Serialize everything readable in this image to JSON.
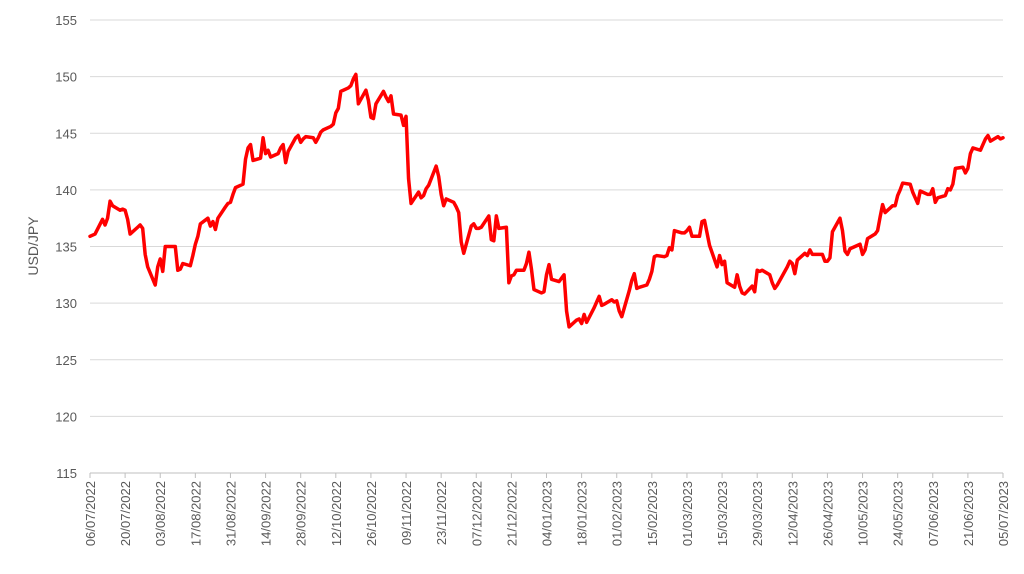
{
  "chart_data": {
    "type": "line",
    "ylabel": "USD/JPY",
    "xlabel": "",
    "ylim": [
      115,
      155
    ],
    "y_ticks": [
      115,
      120,
      125,
      130,
      135,
      140,
      145,
      150,
      155
    ],
    "y_tick_labels": [
      "115",
      "120",
      "125",
      "130",
      "135",
      "140",
      "145",
      "150",
      "155"
    ],
    "x_range": [
      "2022-07-06",
      "2023-07-05"
    ],
    "x_ticks": [
      "2022-07-06",
      "2022-07-20",
      "2022-08-03",
      "2022-08-17",
      "2022-08-31",
      "2022-09-14",
      "2022-09-28",
      "2022-10-12",
      "2022-10-26",
      "2022-11-09",
      "2022-11-23",
      "2022-12-07",
      "2022-12-21",
      "2023-01-04",
      "2023-01-18",
      "2023-02-01",
      "2023-02-15",
      "2023-03-01",
      "2023-03-15",
      "2023-03-29",
      "2023-04-12",
      "2023-04-26",
      "2023-05-10",
      "2023-05-24",
      "2023-06-07",
      "2023-06-21",
      "2023-07-05"
    ],
    "x_tick_labels": [
      "06/07/2022",
      "20/07/2022",
      "03/08/2022",
      "17/08/2022",
      "31/08/2022",
      "14/09/2022",
      "28/09/2022",
      "12/10/2022",
      "26/10/2022",
      "09/11/2022",
      "23/11/2022",
      "07/12/2022",
      "21/12/2022",
      "04/01/2023",
      "18/01/2023",
      "01/02/2023",
      "15/02/2023",
      "01/03/2023",
      "15/03/2023",
      "29/03/2023",
      "12/04/2023",
      "26/04/2023",
      "10/05/2023",
      "24/05/2023",
      "07/06/2023",
      "21/06/2023",
      "05/07/2023"
    ],
    "grid": true,
    "legend": "none",
    "series": [
      {
        "color": "#ff0000",
        "points": [
          [
            "2022-07-06",
            135.9
          ],
          [
            "2022-07-07",
            136.0
          ],
          [
            "2022-07-08",
            136.1
          ],
          [
            "2022-07-11",
            137.4
          ],
          [
            "2022-07-12",
            136.9
          ],
          [
            "2022-07-13",
            137.5
          ],
          [
            "2022-07-14",
            139.0
          ],
          [
            "2022-07-15",
            138.6
          ],
          [
            "2022-07-18",
            138.2
          ],
          [
            "2022-07-19",
            138.3
          ],
          [
            "2022-07-20",
            138.2
          ],
          [
            "2022-07-21",
            137.4
          ],
          [
            "2022-07-22",
            136.1
          ],
          [
            "2022-07-25",
            136.7
          ],
          [
            "2022-07-26",
            136.9
          ],
          [
            "2022-07-27",
            136.6
          ],
          [
            "2022-07-28",
            134.3
          ],
          [
            "2022-07-29",
            133.2
          ],
          [
            "2022-08-01",
            131.6
          ],
          [
            "2022-08-02",
            133.2
          ],
          [
            "2022-08-03",
            133.9
          ],
          [
            "2022-08-04",
            132.8
          ],
          [
            "2022-08-05",
            135.0
          ],
          [
            "2022-08-08",
            135.0
          ],
          [
            "2022-08-09",
            135.0
          ],
          [
            "2022-08-10",
            132.9
          ],
          [
            "2022-08-11",
            133.0
          ],
          [
            "2022-08-12",
            133.5
          ],
          [
            "2022-08-15",
            133.3
          ],
          [
            "2022-08-16",
            134.2
          ],
          [
            "2022-08-17",
            135.2
          ],
          [
            "2022-08-18",
            135.9
          ],
          [
            "2022-08-19",
            137.0
          ],
          [
            "2022-08-22",
            137.5
          ],
          [
            "2022-08-23",
            136.8
          ],
          [
            "2022-08-24",
            137.2
          ],
          [
            "2022-08-25",
            136.5
          ],
          [
            "2022-08-26",
            137.5
          ],
          [
            "2022-08-29",
            138.5
          ],
          [
            "2022-08-30",
            138.8
          ],
          [
            "2022-08-31",
            138.9
          ],
          [
            "2022-09-01",
            139.6
          ],
          [
            "2022-09-02",
            140.2
          ],
          [
            "2022-09-05",
            140.5
          ],
          [
            "2022-09-06",
            142.7
          ],
          [
            "2022-09-07",
            143.7
          ],
          [
            "2022-09-08",
            144.0
          ],
          [
            "2022-09-09",
            142.6
          ],
          [
            "2022-09-12",
            142.8
          ],
          [
            "2022-09-13",
            144.6
          ],
          [
            "2022-09-14",
            143.2
          ],
          [
            "2022-09-15",
            143.5
          ],
          [
            "2022-09-16",
            142.9
          ],
          [
            "2022-09-19",
            143.2
          ],
          [
            "2022-09-20",
            143.7
          ],
          [
            "2022-09-21",
            144.0
          ],
          [
            "2022-09-22",
            142.4
          ],
          [
            "2022-09-23",
            143.4
          ],
          [
            "2022-09-26",
            144.6
          ],
          [
            "2022-09-27",
            144.8
          ],
          [
            "2022-09-28",
            144.2
          ],
          [
            "2022-09-29",
            144.5
          ],
          [
            "2022-09-30",
            144.7
          ],
          [
            "2022-10-03",
            144.6
          ],
          [
            "2022-10-04",
            144.2
          ],
          [
            "2022-10-05",
            144.6
          ],
          [
            "2022-10-06",
            145.1
          ],
          [
            "2022-10-07",
            145.3
          ],
          [
            "2022-10-10",
            145.6
          ],
          [
            "2022-10-11",
            145.8
          ],
          [
            "2022-10-12",
            146.8
          ],
          [
            "2022-10-13",
            147.2
          ],
          [
            "2022-10-14",
            148.7
          ],
          [
            "2022-10-17",
            149.0
          ],
          [
            "2022-10-18",
            149.2
          ],
          [
            "2022-10-19",
            149.8
          ],
          [
            "2022-10-20",
            150.2
          ],
          [
            "2022-10-21",
            147.6
          ],
          [
            "2022-10-24",
            148.8
          ],
          [
            "2022-10-25",
            147.9
          ],
          [
            "2022-10-26",
            146.4
          ],
          [
            "2022-10-27",
            146.3
          ],
          [
            "2022-10-28",
            147.6
          ],
          [
            "2022-10-31",
            148.7
          ],
          [
            "2022-11-01",
            148.2
          ],
          [
            "2022-11-02",
            147.8
          ],
          [
            "2022-11-03",
            148.3
          ],
          [
            "2022-11-04",
            146.7
          ],
          [
            "2022-11-07",
            146.6
          ],
          [
            "2022-11-08",
            145.7
          ],
          [
            "2022-11-09",
            146.5
          ],
          [
            "2022-11-10",
            141.0
          ],
          [
            "2022-11-11",
            138.8
          ],
          [
            "2022-11-14",
            139.8
          ],
          [
            "2022-11-15",
            139.3
          ],
          [
            "2022-11-16",
            139.5
          ],
          [
            "2022-11-17",
            140.1
          ],
          [
            "2022-11-18",
            140.4
          ],
          [
            "2022-11-21",
            142.1
          ],
          [
            "2022-11-22",
            141.2
          ],
          [
            "2022-11-23",
            139.6
          ],
          [
            "2022-11-24",
            138.6
          ],
          [
            "2022-11-25",
            139.2
          ],
          [
            "2022-11-28",
            138.9
          ],
          [
            "2022-11-29",
            138.5
          ],
          [
            "2022-11-30",
            138.0
          ],
          [
            "2022-12-01",
            135.4
          ],
          [
            "2022-12-02",
            134.4
          ],
          [
            "2022-12-05",
            136.8
          ],
          [
            "2022-12-06",
            137.0
          ],
          [
            "2022-12-07",
            136.6
          ],
          [
            "2022-12-08",
            136.6
          ],
          [
            "2022-12-09",
            136.7
          ],
          [
            "2022-12-12",
            137.7
          ],
          [
            "2022-12-13",
            135.6
          ],
          [
            "2022-12-14",
            135.5
          ],
          [
            "2022-12-15",
            137.7
          ],
          [
            "2022-12-16",
            136.6
          ],
          [
            "2022-12-19",
            136.7
          ],
          [
            "2022-12-20",
            131.8
          ],
          [
            "2022-12-21",
            132.4
          ],
          [
            "2022-12-22",
            132.5
          ],
          [
            "2022-12-23",
            132.9
          ],
          [
            "2022-12-26",
            132.9
          ],
          [
            "2022-12-27",
            133.5
          ],
          [
            "2022-12-28",
            134.5
          ],
          [
            "2022-12-29",
            133.0
          ],
          [
            "2022-12-30",
            131.2
          ],
          [
            "2023-01-02",
            130.9
          ],
          [
            "2023-01-03",
            131.0
          ],
          [
            "2023-01-04",
            132.5
          ],
          [
            "2023-01-05",
            133.4
          ],
          [
            "2023-01-06",
            132.1
          ],
          [
            "2023-01-09",
            131.9
          ],
          [
            "2023-01-10",
            132.2
          ],
          [
            "2023-01-11",
            132.5
          ],
          [
            "2023-01-12",
            129.3
          ],
          [
            "2023-01-13",
            127.9
          ],
          [
            "2023-01-16",
            128.5
          ],
          [
            "2023-01-17",
            128.6
          ],
          [
            "2023-01-18",
            128.2
          ],
          [
            "2023-01-19",
            129.0
          ],
          [
            "2023-01-20",
            128.3
          ],
          [
            "2023-01-23",
            129.6
          ],
          [
            "2023-01-24",
            130.1
          ],
          [
            "2023-01-25",
            130.6
          ],
          [
            "2023-01-26",
            129.8
          ],
          [
            "2023-01-27",
            129.9
          ],
          [
            "2023-01-30",
            130.3
          ],
          [
            "2023-01-31",
            130.1
          ],
          [
            "2023-02-01",
            130.2
          ],
          [
            "2023-02-02",
            129.3
          ],
          [
            "2023-02-03",
            128.8
          ],
          [
            "2023-02-06",
            131.1
          ],
          [
            "2023-02-07",
            132.0
          ],
          [
            "2023-02-08",
            132.6
          ],
          [
            "2023-02-09",
            131.3
          ],
          [
            "2023-02-10",
            131.4
          ],
          [
            "2023-02-13",
            131.6
          ],
          [
            "2023-02-14",
            132.1
          ],
          [
            "2023-02-15",
            132.8
          ],
          [
            "2023-02-16",
            134.1
          ],
          [
            "2023-02-17",
            134.2
          ],
          [
            "2023-02-20",
            134.1
          ],
          [
            "2023-02-21",
            134.2
          ],
          [
            "2023-02-22",
            134.9
          ],
          [
            "2023-02-23",
            134.7
          ],
          [
            "2023-02-24",
            136.4
          ],
          [
            "2023-02-27",
            136.2
          ],
          [
            "2023-02-28",
            136.2
          ],
          [
            "2023-03-01",
            136.4
          ],
          [
            "2023-03-02",
            136.7
          ],
          [
            "2023-03-03",
            135.9
          ],
          [
            "2023-03-06",
            135.9
          ],
          [
            "2023-03-07",
            137.2
          ],
          [
            "2023-03-08",
            137.3
          ],
          [
            "2023-03-09",
            136.2
          ],
          [
            "2023-03-10",
            135.1
          ],
          [
            "2023-03-13",
            133.2
          ],
          [
            "2023-03-14",
            134.2
          ],
          [
            "2023-03-15",
            133.4
          ],
          [
            "2023-03-16",
            133.7
          ],
          [
            "2023-03-17",
            131.8
          ],
          [
            "2023-03-20",
            131.4
          ],
          [
            "2023-03-21",
            132.5
          ],
          [
            "2023-03-22",
            131.5
          ],
          [
            "2023-03-23",
            130.9
          ],
          [
            "2023-03-24",
            130.8
          ],
          [
            "2023-03-27",
            131.5
          ],
          [
            "2023-03-28",
            131.0
          ],
          [
            "2023-03-29",
            132.9
          ],
          [
            "2023-03-30",
            132.8
          ],
          [
            "2023-03-31",
            132.9
          ],
          [
            "2023-04-03",
            132.5
          ],
          [
            "2023-04-04",
            131.8
          ],
          [
            "2023-04-05",
            131.3
          ],
          [
            "2023-04-06",
            131.6
          ],
          [
            "2023-04-07",
            132.0
          ],
          [
            "2023-04-10",
            133.2
          ],
          [
            "2023-04-11",
            133.7
          ],
          [
            "2023-04-12",
            133.5
          ],
          [
            "2023-04-13",
            132.6
          ],
          [
            "2023-04-14",
            133.8
          ],
          [
            "2023-04-17",
            134.4
          ],
          [
            "2023-04-18",
            134.2
          ],
          [
            "2023-04-19",
            134.7
          ],
          [
            "2023-04-20",
            134.3
          ],
          [
            "2023-04-21",
            134.3
          ],
          [
            "2023-04-24",
            134.3
          ],
          [
            "2023-04-25",
            133.7
          ],
          [
            "2023-04-26",
            133.7
          ],
          [
            "2023-04-27",
            134.0
          ],
          [
            "2023-04-28",
            136.3
          ],
          [
            "2023-05-01",
            137.5
          ],
          [
            "2023-05-02",
            136.4
          ],
          [
            "2023-05-03",
            134.6
          ],
          [
            "2023-05-04",
            134.3
          ],
          [
            "2023-05-05",
            134.8
          ],
          [
            "2023-05-08",
            135.1
          ],
          [
            "2023-05-09",
            135.2
          ],
          [
            "2023-05-10",
            134.3
          ],
          [
            "2023-05-11",
            134.7
          ],
          [
            "2023-05-12",
            135.7
          ],
          [
            "2023-05-15",
            136.1
          ],
          [
            "2023-05-16",
            136.4
          ],
          [
            "2023-05-17",
            137.6
          ],
          [
            "2023-05-18",
            138.7
          ],
          [
            "2023-05-19",
            138.0
          ],
          [
            "2023-05-22",
            138.6
          ],
          [
            "2023-05-23",
            138.6
          ],
          [
            "2023-05-24",
            139.5
          ],
          [
            "2023-05-25",
            140.0
          ],
          [
            "2023-05-26",
            140.6
          ],
          [
            "2023-05-29",
            140.5
          ],
          [
            "2023-05-30",
            139.8
          ],
          [
            "2023-05-31",
            139.3
          ],
          [
            "2023-06-01",
            138.8
          ],
          [
            "2023-06-02",
            139.9
          ],
          [
            "2023-06-05",
            139.6
          ],
          [
            "2023-06-06",
            139.6
          ],
          [
            "2023-06-07",
            140.1
          ],
          [
            "2023-06-08",
            138.9
          ],
          [
            "2023-06-09",
            139.3
          ],
          [
            "2023-06-12",
            139.5
          ],
          [
            "2023-06-13",
            140.1
          ],
          [
            "2023-06-14",
            140.0
          ],
          [
            "2023-06-15",
            140.5
          ],
          [
            "2023-06-16",
            141.9
          ],
          [
            "2023-06-19",
            142.0
          ],
          [
            "2023-06-20",
            141.5
          ],
          [
            "2023-06-21",
            141.9
          ],
          [
            "2023-06-22",
            143.2
          ],
          [
            "2023-06-23",
            143.7
          ],
          [
            "2023-06-26",
            143.5
          ],
          [
            "2023-06-27",
            144.0
          ],
          [
            "2023-06-28",
            144.5
          ],
          [
            "2023-06-29",
            144.8
          ],
          [
            "2023-06-30",
            144.3
          ],
          [
            "2023-07-03",
            144.7
          ],
          [
            "2023-07-04",
            144.5
          ],
          [
            "2023-07-05",
            144.6
          ]
        ]
      }
    ]
  }
}
